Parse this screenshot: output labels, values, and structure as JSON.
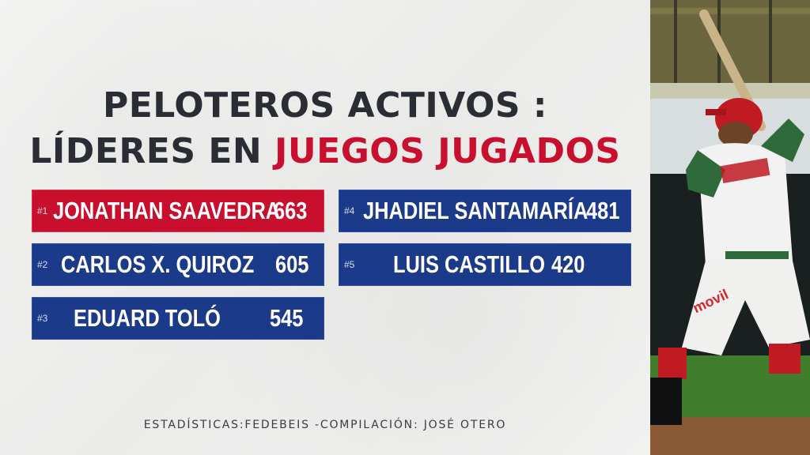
{
  "title": {
    "line1": "PELOTEROS ACTIVOS :",
    "line2_prefix": "LÍDERES EN ",
    "line2_highlight": "JUEGOS JUGADOS"
  },
  "leaders": [
    {
      "rank": "#1",
      "name": "JONATHAN SAAVEDRA",
      "games": "663"
    },
    {
      "rank": "#2",
      "name": "CARLOS X. QUIROZ",
      "games": "605"
    },
    {
      "rank": "#3",
      "name": "EDUARD TOLÓ",
      "games": "545"
    },
    {
      "rank": "#4",
      "name": "JHADIEL SANTAMARÍA",
      "games": "481"
    },
    {
      "rank": "#5",
      "name": "LUIS CASTILLO",
      "games": "420"
    }
  ],
  "credit": "ESTADÍSTICAS:FEDEBEIS -COMPILACIÓN: JOSÉ OTERO",
  "photo": {
    "jersey_text": "movil"
  },
  "colors": {
    "accent_red": "#c8102e",
    "row_blue": "#1c3a8a",
    "title_dark": "#2a2d33"
  }
}
